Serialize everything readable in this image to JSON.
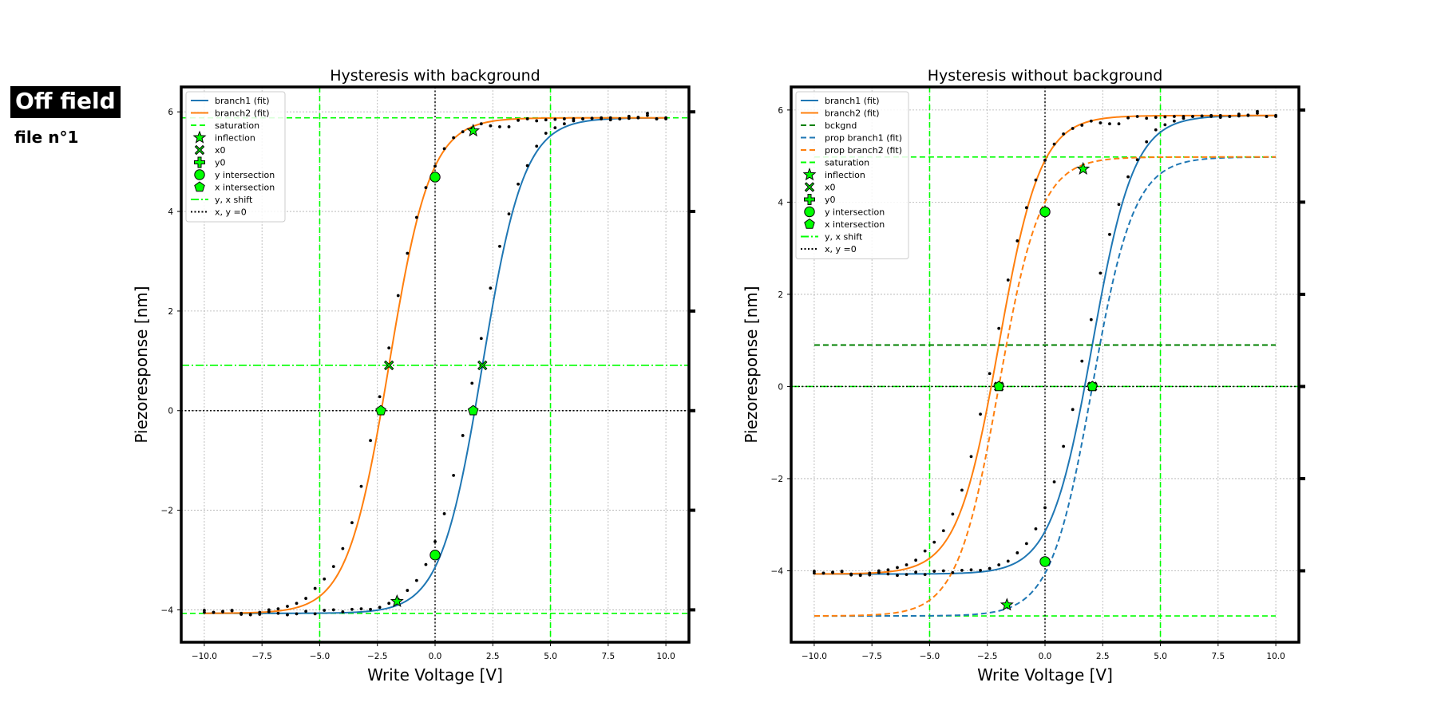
{
  "header": {
    "title": "Off field",
    "subtitle": "file n°1"
  },
  "chart_data": [
    {
      "type": "line",
      "title": "Hysteresis with background",
      "xlabel": "Write Voltage [V]",
      "ylabel": "Piezoresponse [nm]",
      "xlim": [
        -11,
        11
      ],
      "ylim": [
        -4.65,
        6.5
      ],
      "xticks": [
        -10,
        -7.5,
        -5,
        -2.5,
        0,
        2.5,
        5,
        7.5,
        10
      ],
      "xtick_labels": [
        "−10.0",
        "−7.5",
        "−5.0",
        "−2.5",
        "0.0",
        "2.5",
        "5.0",
        "7.5",
        "10.0"
      ],
      "yticks": [
        -4,
        -2,
        0,
        2,
        4,
        6
      ],
      "ytick_labels": [
        "−4",
        "−2",
        "0",
        "2",
        "4",
        "6"
      ],
      "grid": true,
      "legend_position": "top-left",
      "model": {
        "low": -4.07,
        "high": 5.88,
        "branch1_center": 2.05,
        "branch2_center": -2.0,
        "width": 0.9
      },
      "series": [
        {
          "name": "branch1 (fit)",
          "kind": "fit",
          "branch": 1,
          "color": "#1f77b4",
          "dash": "solid"
        },
        {
          "name": "branch2 (fit)",
          "kind": "fit",
          "branch": 2,
          "color": "#ff7f0e",
          "dash": "solid"
        }
      ],
      "measured_points": [
        [
          -10.0,
          -4.01
        ],
        [
          -9.6,
          -4.05
        ],
        [
          -9.2,
          -4.03
        ],
        [
          -8.8,
          -4.02
        ],
        [
          -8.4,
          -4.07
        ],
        [
          -8.0,
          -4.1
        ],
        [
          -7.6,
          -4.09
        ],
        [
          -7.2,
          -4.04
        ],
        [
          -6.8,
          -4.07
        ],
        [
          -6.4,
          -4.1
        ],
        [
          -6.0,
          -4.08
        ],
        [
          -5.6,
          -4.03
        ],
        [
          -5.2,
          -4.08
        ],
        [
          -4.8,
          -4.01
        ],
        [
          -4.4,
          -4.0
        ],
        [
          -4.0,
          -4.04
        ],
        [
          -3.6,
          -3.99
        ],
        [
          -3.2,
          -3.98
        ],
        [
          -2.8,
          -3.99
        ],
        [
          -2.4,
          -3.95
        ],
        [
          -2.0,
          -3.87
        ],
        [
          -1.6,
          -3.79
        ],
        [
          -1.2,
          -3.61
        ],
        [
          -0.8,
          -3.41
        ],
        [
          -0.4,
          -3.09
        ],
        [
          0.0,
          -2.63
        ],
        [
          0.4,
          -2.07
        ],
        [
          0.8,
          -1.3
        ],
        [
          1.2,
          -0.5
        ],
        [
          1.6,
          0.55
        ],
        [
          2.0,
          1.45
        ],
        [
          2.4,
          2.46
        ],
        [
          2.8,
          3.3
        ],
        [
          3.2,
          3.95
        ],
        [
          3.6,
          4.55
        ],
        [
          4.0,
          4.92
        ],
        [
          4.4,
          5.31
        ],
        [
          4.8,
          5.57
        ],
        [
          5.2,
          5.68
        ],
        [
          5.6,
          5.76
        ],
        [
          6.0,
          5.82
        ],
        [
          6.4,
          5.86
        ],
        [
          6.8,
          5.87
        ],
        [
          7.2,
          5.86
        ],
        [
          7.6,
          5.84
        ],
        [
          8.0,
          5.86
        ],
        [
          8.4,
          5.91
        ],
        [
          8.8,
          5.88
        ],
        [
          9.2,
          5.97
        ],
        [
          9.6,
          5.86
        ],
        [
          10.0,
          5.86
        ],
        [
          -10.0,
          -4.05
        ],
        [
          -9.6,
          -4.05
        ],
        [
          -9.2,
          -4.04
        ],
        [
          -8.8,
          -4.01
        ],
        [
          -8.4,
          -4.09
        ],
        [
          -8.0,
          -4.09
        ],
        [
          -7.6,
          -4.05
        ],
        [
          -7.2,
          -4.0
        ],
        [
          -6.8,
          -3.98
        ],
        [
          -6.4,
          -3.93
        ],
        [
          -6.0,
          -3.87
        ],
        [
          -5.6,
          -3.77
        ],
        [
          -5.2,
          -3.57
        ],
        [
          -4.8,
          -3.38
        ],
        [
          -4.4,
          -3.13
        ],
        [
          -4.0,
          -2.77
        ],
        [
          -3.6,
          -2.25
        ],
        [
          -3.2,
          -1.52
        ],
        [
          -2.8,
          -0.6
        ],
        [
          -2.4,
          0.28
        ],
        [
          -2.0,
          1.26
        ],
        [
          -1.6,
          2.31
        ],
        [
          -1.2,
          3.16
        ],
        [
          -0.8,
          3.88
        ],
        [
          -0.4,
          4.48
        ],
        [
          0.0,
          4.91
        ],
        [
          0.4,
          5.26
        ],
        [
          0.8,
          5.48
        ],
        [
          1.2,
          5.6
        ],
        [
          1.6,
          5.67
        ],
        [
          2.0,
          5.76
        ],
        [
          2.4,
          5.72
        ],
        [
          2.8,
          5.7
        ],
        [
          3.2,
          5.7
        ],
        [
          3.6,
          5.83
        ],
        [
          4.0,
          5.86
        ],
        [
          4.4,
          5.82
        ],
        [
          4.8,
          5.84
        ],
        [
          5.2,
          5.85
        ],
        [
          5.6,
          5.86
        ],
        [
          6.0,
          5.86
        ],
        [
          6.4,
          5.86
        ],
        [
          6.8,
          5.87
        ],
        [
          7.2,
          5.88
        ],
        [
          7.6,
          5.88
        ],
        [
          8.0,
          5.86
        ],
        [
          8.4,
          5.87
        ],
        [
          8.8,
          5.89
        ],
        [
          9.2,
          5.93
        ],
        [
          9.6,
          5.86
        ],
        [
          10.0,
          5.88
        ]
      ],
      "markers": {
        "inflection": [
          [
            1.65,
            5.62
          ],
          [
            -1.65,
            -3.83
          ]
        ],
        "x0": [
          [
            -2.0,
            0.91
          ],
          [
            2.05,
            0.91
          ]
        ],
        "y_intersection": [
          [
            0.0,
            4.69
          ],
          [
            0.0,
            -2.9
          ]
        ],
        "x_intersection": [
          [
            -2.35,
            0.0
          ],
          [
            1.65,
            0.0
          ]
        ]
      },
      "ref_lines": {
        "saturation_y": [
          5.88,
          -4.07
        ],
        "saturation_x": [
          -5.0,
          5.0
        ],
        "shift_y": 0.91,
        "zero_y": 0.0,
        "zero_x": 0.0
      },
      "legend": [
        {
          "label": "branch1 (fit)",
          "style": "line",
          "color": "#1f77b4",
          "dash": "solid"
        },
        {
          "label": "branch2 (fit)",
          "style": "line",
          "color": "#ff7f0e",
          "dash": "solid"
        },
        {
          "label": "saturation",
          "style": "line",
          "color": "#00ff00",
          "dash": "dashed"
        },
        {
          "label": "inflection",
          "style": "marker",
          "marker": "star"
        },
        {
          "label": "x0",
          "style": "marker",
          "marker": "x"
        },
        {
          "label": "y0",
          "style": "marker",
          "marker": "plus"
        },
        {
          "label": "y intersection",
          "style": "marker",
          "marker": "circle"
        },
        {
          "label": "x intersection",
          "style": "marker",
          "marker": "pentagon"
        },
        {
          "label": "y, x shift",
          "style": "line",
          "color": "#00ff00",
          "dash": "dashdot"
        },
        {
          "label": "x, y =0",
          "style": "line",
          "color": "#000000",
          "dash": "dotted"
        }
      ]
    },
    {
      "type": "line",
      "title": "Hysteresis without background",
      "xlabel": "Write Voltage [V]",
      "ylabel": "Piezoresponse [nm]",
      "xlim": [
        -11,
        11
      ],
      "ylim": [
        -5.55,
        6.5
      ],
      "xticks": [
        -10,
        -7.5,
        -5,
        -2.5,
        0,
        2.5,
        5,
        7.5,
        10
      ],
      "xtick_labels": [
        "−10.0",
        "−7.5",
        "−5.0",
        "−2.5",
        "0.0",
        "2.5",
        "5.0",
        "7.5",
        "10.0"
      ],
      "yticks": [
        -4,
        -2,
        0,
        2,
        4,
        6
      ],
      "ytick_labels": [
        "−4",
        "−2",
        "0",
        "2",
        "4",
        "6"
      ],
      "grid": true,
      "legend_position": "top-left",
      "model": {
        "low": -4.07,
        "high": 5.88,
        "branch1_center": 2.05,
        "branch2_center": -2.0,
        "width": 0.9,
        "prop_low": -4.98,
        "prop_high": 4.98,
        "background": 0.9
      },
      "series": [
        {
          "name": "branch1 (fit)",
          "kind": "fit",
          "branch": 1,
          "color": "#1f77b4",
          "dash": "solid"
        },
        {
          "name": "branch2 (fit)",
          "kind": "fit",
          "branch": 2,
          "color": "#ff7f0e",
          "dash": "solid"
        },
        {
          "name": "bckgnd",
          "kind": "background",
          "color": "#008000",
          "dash": "dashed"
        },
        {
          "name": "prop branch1 (fit)",
          "kind": "prop",
          "branch": 1,
          "color": "#1f77b4",
          "dash": "dashed"
        },
        {
          "name": "prop branch2 (fit)",
          "kind": "prop",
          "branch": 2,
          "color": "#ff7f0e",
          "dash": "dashed"
        }
      ],
      "measured_points": [
        [
          -10.0,
          -4.01
        ],
        [
          -9.6,
          -4.05
        ],
        [
          -9.2,
          -4.03
        ],
        [
          -8.8,
          -4.02
        ],
        [
          -8.4,
          -4.07
        ],
        [
          -8.0,
          -4.1
        ],
        [
          -7.6,
          -4.09
        ],
        [
          -7.2,
          -4.04
        ],
        [
          -6.8,
          -4.07
        ],
        [
          -6.4,
          -4.1
        ],
        [
          -6.0,
          -4.08
        ],
        [
          -5.6,
          -4.03
        ],
        [
          -5.2,
          -4.08
        ],
        [
          -4.8,
          -4.01
        ],
        [
          -4.4,
          -4.0
        ],
        [
          -4.0,
          -4.04
        ],
        [
          -3.6,
          -3.99
        ],
        [
          -3.2,
          -3.98
        ],
        [
          -2.8,
          -3.99
        ],
        [
          -2.4,
          -3.95
        ],
        [
          -2.0,
          -3.87
        ],
        [
          -1.6,
          -3.79
        ],
        [
          -1.2,
          -3.61
        ],
        [
          -0.8,
          -3.41
        ],
        [
          -0.4,
          -3.09
        ],
        [
          0.0,
          -2.63
        ],
        [
          0.4,
          -2.07
        ],
        [
          0.8,
          -1.3
        ],
        [
          1.2,
          -0.5
        ],
        [
          1.6,
          0.55
        ],
        [
          2.0,
          1.45
        ],
        [
          2.4,
          2.46
        ],
        [
          2.8,
          3.3
        ],
        [
          3.2,
          3.95
        ],
        [
          3.6,
          4.55
        ],
        [
          4.0,
          4.92
        ],
        [
          4.4,
          5.31
        ],
        [
          4.8,
          5.57
        ],
        [
          5.2,
          5.68
        ],
        [
          5.6,
          5.76
        ],
        [
          6.0,
          5.82
        ],
        [
          6.4,
          5.86
        ],
        [
          6.8,
          5.87
        ],
        [
          7.2,
          5.86
        ],
        [
          7.6,
          5.84
        ],
        [
          8.0,
          5.86
        ],
        [
          8.4,
          5.91
        ],
        [
          8.8,
          5.88
        ],
        [
          9.2,
          5.97
        ],
        [
          9.6,
          5.86
        ],
        [
          10.0,
          5.86
        ],
        [
          -10.0,
          -4.05
        ],
        [
          -9.6,
          -4.05
        ],
        [
          -9.2,
          -4.04
        ],
        [
          -8.8,
          -4.01
        ],
        [
          -8.4,
          -4.09
        ],
        [
          -8.0,
          -4.09
        ],
        [
          -7.6,
          -4.05
        ],
        [
          -7.2,
          -4.0
        ],
        [
          -6.8,
          -3.98
        ],
        [
          -6.4,
          -3.93
        ],
        [
          -6.0,
          -3.87
        ],
        [
          -5.6,
          -3.77
        ],
        [
          -5.2,
          -3.57
        ],
        [
          -4.8,
          -3.38
        ],
        [
          -4.4,
          -3.13
        ],
        [
          -4.0,
          -2.77
        ],
        [
          -3.6,
          -2.25
        ],
        [
          -3.2,
          -1.52
        ],
        [
          -2.8,
          -0.6
        ],
        [
          -2.4,
          0.28
        ],
        [
          -2.0,
          1.26
        ],
        [
          -1.6,
          2.31
        ],
        [
          -1.2,
          3.16
        ],
        [
          -0.8,
          3.88
        ],
        [
          -0.4,
          4.48
        ],
        [
          0.0,
          4.91
        ],
        [
          0.4,
          5.26
        ],
        [
          0.8,
          5.48
        ],
        [
          1.2,
          5.6
        ],
        [
          1.6,
          5.67
        ],
        [
          2.0,
          5.76
        ],
        [
          2.4,
          5.72
        ],
        [
          2.8,
          5.7
        ],
        [
          3.2,
          5.7
        ],
        [
          3.6,
          5.83
        ],
        [
          4.0,
          5.86
        ],
        [
          4.4,
          5.82
        ],
        [
          4.8,
          5.84
        ],
        [
          5.2,
          5.85
        ],
        [
          5.6,
          5.86
        ],
        [
          6.0,
          5.86
        ],
        [
          6.4,
          5.86
        ],
        [
          6.8,
          5.87
        ],
        [
          7.2,
          5.88
        ],
        [
          7.6,
          5.88
        ],
        [
          8.0,
          5.86
        ],
        [
          8.4,
          5.87
        ],
        [
          8.8,
          5.89
        ],
        [
          9.2,
          5.93
        ],
        [
          9.6,
          5.86
        ],
        [
          10.0,
          5.88
        ]
      ],
      "markers": {
        "inflection": [
          [
            1.65,
            4.72
          ],
          [
            -1.65,
            -4.74
          ]
        ],
        "x0": [
          [
            -2.0,
            0.0
          ],
          [
            2.05,
            0.0
          ]
        ],
        "y_intersection": [
          [
            0.0,
            3.79
          ],
          [
            0.0,
            -3.8
          ]
        ],
        "x_intersection": [
          [
            -2.0,
            0.0
          ],
          [
            2.05,
            0.0
          ]
        ]
      },
      "ref_lines": {
        "saturation_y": [
          4.98,
          -4.98
        ],
        "saturation_x": [
          -5.0,
          5.0
        ],
        "shift_y": 0.0,
        "zero_y": 0.0,
        "zero_x": 0.0
      },
      "legend": [
        {
          "label": "branch1 (fit)",
          "style": "line",
          "color": "#1f77b4",
          "dash": "solid"
        },
        {
          "label": "branch2 (fit)",
          "style": "line",
          "color": "#ff7f0e",
          "dash": "solid"
        },
        {
          "label": "bckgnd",
          "style": "line",
          "color": "#008000",
          "dash": "dashed"
        },
        {
          "label": "prop branch1 (fit)",
          "style": "line",
          "color": "#1f77b4",
          "dash": "dashed"
        },
        {
          "label": "prop branch2 (fit)",
          "style": "line",
          "color": "#ff7f0e",
          "dash": "dashed"
        },
        {
          "label": "saturation",
          "style": "line",
          "color": "#00ff00",
          "dash": "dashed"
        },
        {
          "label": "inflection",
          "style": "marker",
          "marker": "star"
        },
        {
          "label": "x0",
          "style": "marker",
          "marker": "x"
        },
        {
          "label": "y0",
          "style": "marker",
          "marker": "plus"
        },
        {
          "label": "y intersection",
          "style": "marker",
          "marker": "circle"
        },
        {
          "label": "x intersection",
          "style": "marker",
          "marker": "pentagon"
        },
        {
          "label": "y, x shift",
          "style": "line",
          "color": "#00ff00",
          "dash": "dashdot"
        },
        {
          "label": "x, y =0",
          "style": "line",
          "color": "#000000",
          "dash": "dotted"
        }
      ]
    }
  ]
}
